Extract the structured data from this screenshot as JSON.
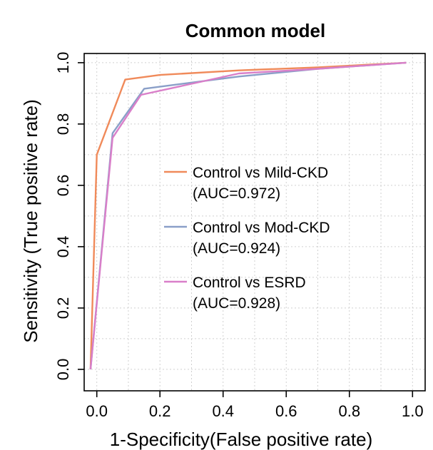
{
  "chart_data": {
    "type": "line",
    "title": "Common model",
    "xlabel": "1-Specificity(False positive rate)",
    "ylabel": "Sensitivity (True positive rate)",
    "xlim": [
      -0.04,
      1.04
    ],
    "ylim": [
      -0.07,
      1.03
    ],
    "x_ticks": [
      "0.0",
      "0.2",
      "0.4",
      "0.6",
      "0.8",
      "1.0"
    ],
    "y_ticks": [
      "0.0",
      "0.2",
      "0.4",
      "0.6",
      "0.8",
      "1.0"
    ],
    "grid": true,
    "legend_position": "center-right",
    "series": [
      {
        "name": "Control vs Mild-CKD",
        "auc_label": "(AUC=0.972)",
        "color": "#f08a5a",
        "x": [
          -0.02,
          0.0,
          0.09,
          0.2,
          0.45,
          0.7,
          0.98
        ],
        "y": [
          0.0,
          0.7,
          0.945,
          0.96,
          0.975,
          0.985,
          1.0
        ]
      },
      {
        "name": "Control vs Mod-CKD",
        "auc_label": "(AUC=0.924)",
        "color": "#8a9fc8",
        "x": [
          -0.02,
          0.05,
          0.15,
          0.45,
          0.7,
          0.98
        ],
        "y": [
          0.0,
          0.77,
          0.915,
          0.955,
          0.98,
          1.0
        ]
      },
      {
        "name": "Control vs ESRD",
        "auc_label": "(AUC=0.928)",
        "color": "#d97fc9",
        "x": [
          -0.02,
          0.05,
          0.14,
          0.45,
          0.7,
          0.98
        ],
        "y": [
          0.0,
          0.755,
          0.895,
          0.965,
          0.98,
          1.0
        ]
      }
    ]
  }
}
